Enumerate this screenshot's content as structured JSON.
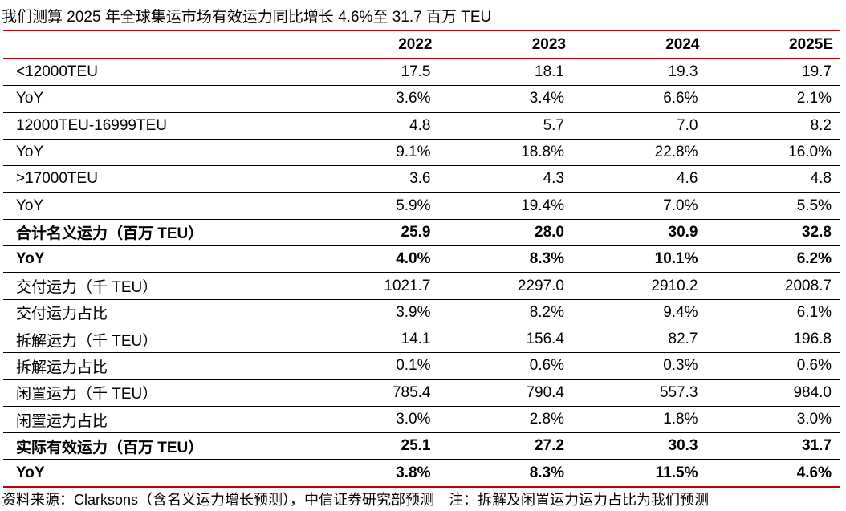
{
  "title": "我们测算 2025 年全球集运市场有效运力同比增长 4.6%至 31.7 百万 TEU",
  "columns": [
    "",
    "2022",
    "2023",
    "2024",
    "2025E"
  ],
  "rows": [
    {
      "label": "<12000TEU",
      "values": [
        "17.5",
        "18.1",
        "19.3",
        "19.7"
      ],
      "bold": false
    },
    {
      "label": "YoY",
      "values": [
        "3.6%",
        "3.4%",
        "6.6%",
        "2.1%"
      ],
      "bold": false
    },
    {
      "label": "12000TEU-16999TEU",
      "values": [
        "4.8",
        "5.7",
        "7.0",
        "8.2"
      ],
      "bold": false
    },
    {
      "label": "YoY",
      "values": [
        "9.1%",
        "18.8%",
        "22.8%",
        "16.0%"
      ],
      "bold": false
    },
    {
      "label": ">17000TEU",
      "values": [
        "3.6",
        "4.3",
        "4.6",
        "4.8"
      ],
      "bold": false
    },
    {
      "label": "YoY",
      "values": [
        "5.9%",
        "19.4%",
        "7.0%",
        "5.5%"
      ],
      "bold": false
    },
    {
      "label": "合计名义运力（百万 TEU）",
      "values": [
        "25.9",
        "28.0",
        "30.9",
        "32.8"
      ],
      "bold": true
    },
    {
      "label": "YoY",
      "values": [
        "4.0%",
        "8.3%",
        "10.1%",
        "6.2%"
      ],
      "bold": true
    },
    {
      "label": "交付运力（千 TEU）",
      "values": [
        "1021.7",
        "2297.0",
        "2910.2",
        "2008.7"
      ],
      "bold": false
    },
    {
      "label": "交付运力占比",
      "values": [
        "3.9%",
        "8.2%",
        "9.4%",
        "6.1%"
      ],
      "bold": false
    },
    {
      "label": "拆解运力（千 TEU）",
      "values": [
        "14.1",
        "156.4",
        "82.7",
        "196.8"
      ],
      "bold": false
    },
    {
      "label": "拆解运力占比",
      "values": [
        "0.1%",
        "0.6%",
        "0.3%",
        "0.6%"
      ],
      "bold": false
    },
    {
      "label": "闲置运力（千 TEU）",
      "values": [
        "785.4",
        "790.4",
        "557.3",
        "984.0"
      ],
      "bold": false
    },
    {
      "label": "闲置运力占比",
      "values": [
        "3.0%",
        "2.8%",
        "1.8%",
        "3.0%"
      ],
      "bold": false
    },
    {
      "label": "实际有效运力（百万 TEU）",
      "values": [
        "25.1",
        "27.2",
        "30.3",
        "31.7"
      ],
      "bold": true
    },
    {
      "label": "YoY",
      "values": [
        "3.8%",
        "8.3%",
        "11.5%",
        "4.6%"
      ],
      "bold": true
    }
  ],
  "note": "资料来源：Clarksons（含名义运力增长预测），中信证券研究部预测　注：拆解及闲置运力运力占比为我们预测",
  "colors": {
    "rule": "#c00000"
  }
}
